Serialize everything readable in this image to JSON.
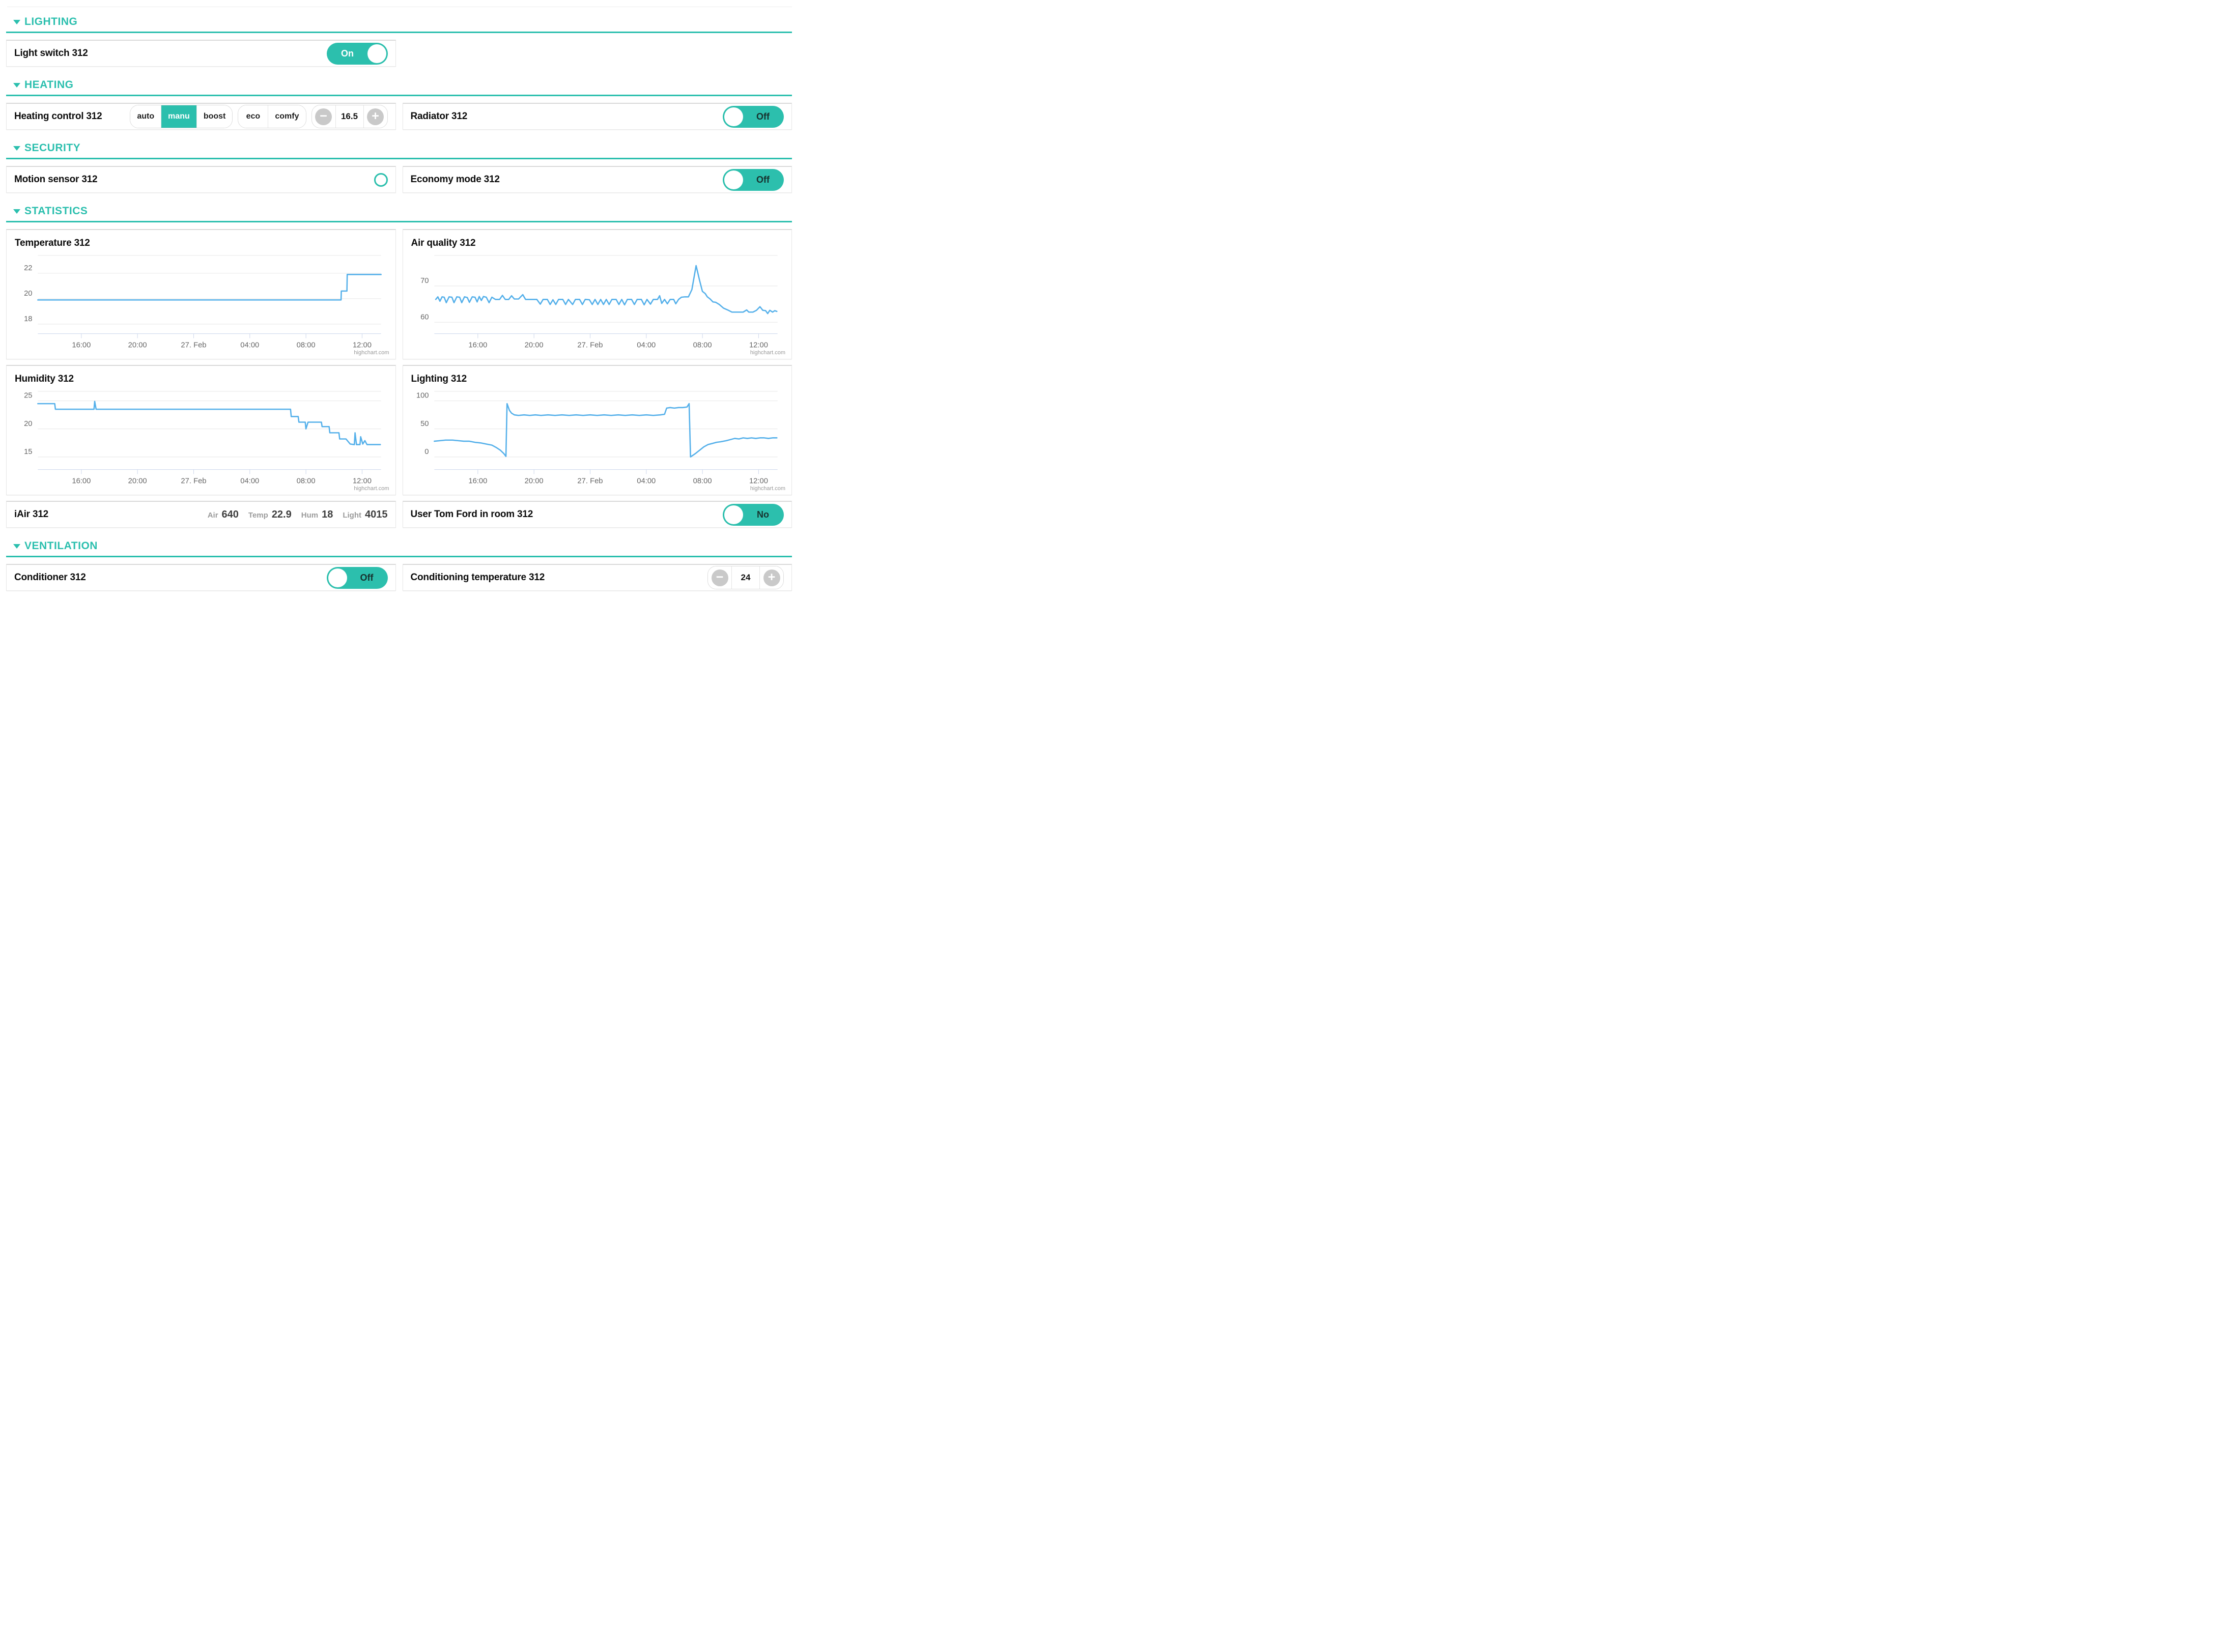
{
  "theme": {
    "accent_teal": "#2cbfad",
    "line_blue": "#55b0ea",
    "grid_gray": "#e6e6e6",
    "axis_blue": "#ccd6eb",
    "label_gray": "#666666"
  },
  "sections": {
    "lighting": {
      "title": "LIGHTING"
    },
    "heating": {
      "title": "HEATING"
    },
    "security": {
      "title": "SECURITY"
    },
    "statistics": {
      "title": "STATISTICS"
    },
    "ventilation": {
      "title": "VENTILATION"
    }
  },
  "rows": {
    "light_switch": {
      "label": "Light switch 312",
      "toggle": {
        "state": "on",
        "text": "On"
      }
    },
    "heating_control": {
      "label": "Heating control 312",
      "mode_options": [
        "auto",
        "manu",
        "boost"
      ],
      "mode_selected": "manu",
      "preset_options": [
        "eco",
        "comfy"
      ],
      "temp_value": "16.5"
    },
    "radiator": {
      "label": "Radiator 312",
      "toggle": {
        "state": "off",
        "text": "Off"
      }
    },
    "motion_sensor": {
      "label": "Motion sensor 312"
    },
    "economy_mode": {
      "label": "Economy mode 312",
      "toggle": {
        "state": "off",
        "text": "Off"
      }
    },
    "iair": {
      "label": "iAir 312",
      "metrics": [
        {
          "name": "Air",
          "value": "640"
        },
        {
          "name": "Temp",
          "value": "22.9"
        },
        {
          "name": "Hum",
          "value": "18"
        },
        {
          "name": "Light",
          "value": "4015"
        }
      ]
    },
    "user_presence": {
      "label": "User Tom Ford in room 312",
      "toggle": {
        "state": "off",
        "text": "No"
      }
    },
    "conditioner": {
      "label": "Conditioner 312",
      "toggle": {
        "state": "off",
        "text": "Off"
      }
    },
    "conditioning_temperature": {
      "label": "Conditioning temperature 312",
      "temp_value": "24"
    }
  },
  "charts": {
    "credit": "highchart.com"
  },
  "chart_data": [
    {
      "type": "line",
      "title": "Temperature 312",
      "xlabel": "",
      "ylabel": "",
      "x_range": [
        12.9,
        37.35
      ],
      "ylim": [
        17.8,
        23.4
      ],
      "yticks": [
        18,
        20,
        22
      ],
      "xticks": {
        "values": [
          16,
          20,
          24,
          28,
          32,
          36
        ],
        "labels": [
          "16:00",
          "20:00",
          "27. Feb",
          "04:00",
          "08:00",
          "12:00"
        ]
      },
      "points": [
        [
          12.9,
          19.9
        ],
        [
          34.5,
          19.9
        ],
        [
          34.52,
          20.6
        ],
        [
          34.92,
          20.6
        ],
        [
          34.94,
          21.9
        ],
        [
          37.35,
          21.9
        ]
      ]
    },
    {
      "type": "line",
      "title": "Air quality 312",
      "xlabel": "",
      "ylabel": "",
      "x_range": [
        12.9,
        37.35
      ],
      "ylim": [
        58.8,
        78.4
      ],
      "yticks": [
        60,
        70
      ],
      "xticks": {
        "values": [
          16,
          20,
          24,
          28,
          32,
          36
        ],
        "labels": [
          "16:00",
          "20:00",
          "27. Feb",
          "04:00",
          "08:00",
          "12:00"
        ]
      },
      "points": [
        [
          13.0,
          66.3
        ],
        [
          13.15,
          67.0
        ],
        [
          13.3,
          65.8
        ],
        [
          13.45,
          67.0
        ],
        [
          13.6,
          66.9
        ],
        [
          13.75,
          65.4
        ],
        [
          13.95,
          67.0
        ],
        [
          14.15,
          66.9
        ],
        [
          14.3,
          65.4
        ],
        [
          14.5,
          67.0
        ],
        [
          14.7,
          66.9
        ],
        [
          14.85,
          65.4
        ],
        [
          15.05,
          67.0
        ],
        [
          15.25,
          66.8
        ],
        [
          15.4,
          65.5
        ],
        [
          15.6,
          67.0
        ],
        [
          15.8,
          66.9
        ],
        [
          15.95,
          65.6
        ],
        [
          16.1,
          67.1
        ],
        [
          16.25,
          66.0
        ],
        [
          16.4,
          67.1
        ],
        [
          16.6,
          66.9
        ],
        [
          16.8,
          65.4
        ],
        [
          17.0,
          66.9
        ],
        [
          17.25,
          66.3
        ],
        [
          17.55,
          66.3
        ],
        [
          17.75,
          67.4
        ],
        [
          17.95,
          66.3
        ],
        [
          18.2,
          66.3
        ],
        [
          18.4,
          67.3
        ],
        [
          18.6,
          66.4
        ],
        [
          18.9,
          66.4
        ],
        [
          19.2,
          67.6
        ],
        [
          19.4,
          66.3
        ],
        [
          19.8,
          66.3
        ],
        [
          20.2,
          66.3
        ],
        [
          20.45,
          65.0
        ],
        [
          20.65,
          66.3
        ],
        [
          20.95,
          66.3
        ],
        [
          21.15,
          64.9
        ],
        [
          21.35,
          66.2
        ],
        [
          21.55,
          64.9
        ],
        [
          21.75,
          66.3
        ],
        [
          22.05,
          66.3
        ],
        [
          22.25,
          64.9
        ],
        [
          22.45,
          66.3
        ],
        [
          22.75,
          64.9
        ],
        [
          22.95,
          66.3
        ],
        [
          23.25,
          66.3
        ],
        [
          23.45,
          64.9
        ],
        [
          23.65,
          66.3
        ],
        [
          23.95,
          66.2
        ],
        [
          24.15,
          64.9
        ],
        [
          24.35,
          66.3
        ],
        [
          24.55,
          64.9
        ],
        [
          24.75,
          66.3
        ],
        [
          24.95,
          64.9
        ],
        [
          25.15,
          66.3
        ],
        [
          25.35,
          64.9
        ],
        [
          25.55,
          66.3
        ],
        [
          25.85,
          66.3
        ],
        [
          26.05,
          64.9
        ],
        [
          26.25,
          66.3
        ],
        [
          26.45,
          64.8
        ],
        [
          26.65,
          66.3
        ],
        [
          26.95,
          66.3
        ],
        [
          27.15,
          64.9
        ],
        [
          27.35,
          66.3
        ],
        [
          27.65,
          66.3
        ],
        [
          27.85,
          64.8
        ],
        [
          28.05,
          66.3
        ],
        [
          28.3,
          65.0
        ],
        [
          28.5,
          66.3
        ],
        [
          28.8,
          66.3
        ],
        [
          28.95,
          67.3
        ],
        [
          29.1,
          65.2
        ],
        [
          29.3,
          66.3
        ],
        [
          29.5,
          65.1
        ],
        [
          29.7,
          66.3
        ],
        [
          29.95,
          66.3
        ],
        [
          30.1,
          65.1
        ],
        [
          30.3,
          66.3
        ],
        [
          30.5,
          66.9
        ],
        [
          30.75,
          67.0
        ],
        [
          31.0,
          67.0
        ],
        [
          31.25,
          69.0
        ],
        [
          31.55,
          75.6
        ],
        [
          31.8,
          71.5
        ],
        [
          32.0,
          68.5
        ],
        [
          32.2,
          67.9
        ],
        [
          32.35,
          67.0
        ],
        [
          32.55,
          66.4
        ],
        [
          32.75,
          65.6
        ],
        [
          32.95,
          65.5
        ],
        [
          33.2,
          64.9
        ],
        [
          33.5,
          63.9
        ],
        [
          33.8,
          63.4
        ],
        [
          34.1,
          62.8
        ],
        [
          34.5,
          62.8
        ],
        [
          34.9,
          62.8
        ],
        [
          35.15,
          63.4
        ],
        [
          35.3,
          62.8
        ],
        [
          35.6,
          62.8
        ],
        [
          35.85,
          63.3
        ],
        [
          36.1,
          64.3
        ],
        [
          36.3,
          63.3
        ],
        [
          36.5,
          63.2
        ],
        [
          36.65,
          62.4
        ],
        [
          36.8,
          63.3
        ],
        [
          37.0,
          62.8
        ],
        [
          37.15,
          63.2
        ],
        [
          37.3,
          63.0
        ]
      ]
    },
    {
      "type": "line",
      "title": "Humidity 312",
      "xlabel": "",
      "ylabel": "",
      "x_range": [
        12.9,
        37.35
      ],
      "ylim": [
        14.0,
        26.7
      ],
      "yticks": [
        15,
        20,
        25
      ],
      "xticks": {
        "values": [
          16,
          20,
          24,
          28,
          32,
          36
        ],
        "labels": [
          "16:00",
          "20:00",
          "27. Feb",
          "04:00",
          "08:00",
          "12:00"
        ]
      },
      "points": [
        [
          12.9,
          24.5
        ],
        [
          14.1,
          24.5
        ],
        [
          14.15,
          23.5
        ],
        [
          16.9,
          23.5
        ],
        [
          16.95,
          24.9
        ],
        [
          17.05,
          23.5
        ],
        [
          30.9,
          23.5
        ],
        [
          30.95,
          22.2
        ],
        [
          31.45,
          22.2
        ],
        [
          31.5,
          21.2
        ],
        [
          31.95,
          21.2
        ],
        [
          32.0,
          20.0
        ],
        [
          32.15,
          21.2
        ],
        [
          33.1,
          21.2
        ],
        [
          33.15,
          20.4
        ],
        [
          33.65,
          20.4
        ],
        [
          33.7,
          19.3
        ],
        [
          34.35,
          19.3
        ],
        [
          34.4,
          18.2
        ],
        [
          34.85,
          18.2
        ],
        [
          34.95,
          17.9
        ],
        [
          35.15,
          17.3
        ],
        [
          35.45,
          17.2
        ],
        [
          35.5,
          19.3
        ],
        [
          35.6,
          17.2
        ],
        [
          35.85,
          17.2
        ],
        [
          35.9,
          18.6
        ],
        [
          36.05,
          17.3
        ],
        [
          36.2,
          17.9
        ],
        [
          36.35,
          17.2
        ],
        [
          37.3,
          17.2
        ]
      ]
    },
    {
      "type": "line",
      "title": "Lighting 312",
      "xlabel": "",
      "ylabel": "",
      "x_range": [
        12.9,
        37.35
      ],
      "ylim": [
        -10,
        117
      ],
      "yticks": [
        0,
        50,
        100
      ],
      "xticks": {
        "values": [
          16,
          20,
          24,
          28,
          32,
          36
        ],
        "labels": [
          "16:00",
          "20:00",
          "27. Feb",
          "04:00",
          "08:00",
          "12:00"
        ]
      },
      "points": [
        [
          12.9,
          28
        ],
        [
          13.3,
          29
        ],
        [
          13.7,
          30
        ],
        [
          14.2,
          30
        ],
        [
          14.6,
          29
        ],
        [
          15.0,
          28
        ],
        [
          15.4,
          28
        ],
        [
          15.8,
          26
        ],
        [
          16.2,
          25
        ],
        [
          16.6,
          23
        ],
        [
          17.0,
          21
        ],
        [
          17.3,
          17
        ],
        [
          17.6,
          12
        ],
        [
          17.85,
          6
        ],
        [
          18.0,
          1
        ],
        [
          18.08,
          95
        ],
        [
          18.25,
          83
        ],
        [
          18.4,
          78
        ],
        [
          18.6,
          75
        ],
        [
          18.9,
          74
        ],
        [
          19.3,
          75
        ],
        [
          19.7,
          74
        ],
        [
          20.1,
          75
        ],
        [
          20.5,
          74
        ],
        [
          21.0,
          75
        ],
        [
          21.5,
          74
        ],
        [
          22.0,
          75
        ],
        [
          22.5,
          74
        ],
        [
          23.0,
          75
        ],
        [
          23.5,
          74
        ],
        [
          24.0,
          75
        ],
        [
          24.5,
          74
        ],
        [
          25.0,
          75
        ],
        [
          25.5,
          74
        ],
        [
          26.0,
          75
        ],
        [
          26.5,
          74
        ],
        [
          27.0,
          75
        ],
        [
          27.5,
          74
        ],
        [
          28.0,
          75
        ],
        [
          28.5,
          74
        ],
        [
          29.0,
          75
        ],
        [
          29.3,
          76
        ],
        [
          29.45,
          87
        ],
        [
          29.7,
          88
        ],
        [
          30.0,
          87
        ],
        [
          30.3,
          88
        ],
        [
          30.6,
          88
        ],
        [
          30.9,
          89
        ],
        [
          31.05,
          95
        ],
        [
          31.15,
          0
        ],
        [
          31.5,
          6
        ],
        [
          31.8,
          12
        ],
        [
          32.1,
          18
        ],
        [
          32.4,
          22
        ],
        [
          32.7,
          24
        ],
        [
          33.0,
          26
        ],
        [
          33.3,
          27
        ],
        [
          33.7,
          29
        ],
        [
          34.0,
          31
        ],
        [
          34.3,
          33
        ],
        [
          34.6,
          32
        ],
        [
          34.9,
          34
        ],
        [
          35.2,
          33
        ],
        [
          35.5,
          34
        ],
        [
          35.8,
          33
        ],
        [
          36.1,
          34
        ],
        [
          36.4,
          34
        ],
        [
          36.7,
          33
        ],
        [
          37.0,
          34
        ],
        [
          37.3,
          34
        ]
      ]
    }
  ]
}
